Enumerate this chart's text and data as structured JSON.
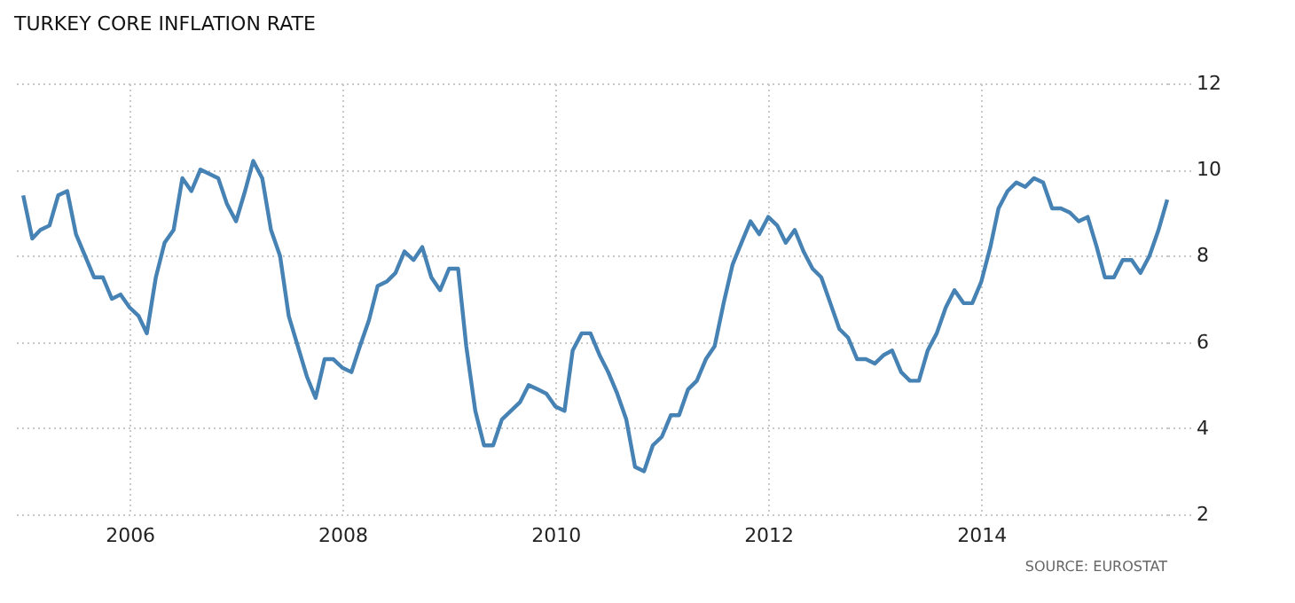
{
  "chart_data": {
    "type": "line",
    "title": "TURKEY CORE INFLATION RATE",
    "annotations": [
      "SOURCE: EUROSTAT"
    ],
    "x": [
      "2005-01",
      "2005-02",
      "2005-03",
      "2005-04",
      "2005-05",
      "2005-06",
      "2005-07",
      "2005-08",
      "2005-09",
      "2005-10",
      "2005-11",
      "2005-12",
      "2006-01",
      "2006-02",
      "2006-03",
      "2006-04",
      "2006-05",
      "2006-06",
      "2006-07",
      "2006-08",
      "2006-09",
      "2006-10",
      "2006-11",
      "2006-12",
      "2007-01",
      "2007-02",
      "2007-03",
      "2007-04",
      "2007-05",
      "2007-06",
      "2007-07",
      "2007-08",
      "2007-09",
      "2007-10",
      "2007-11",
      "2007-12",
      "2008-01",
      "2008-02",
      "2008-03",
      "2008-04",
      "2008-05",
      "2008-06",
      "2008-07",
      "2008-08",
      "2008-09",
      "2008-10",
      "2008-11",
      "2008-12",
      "2009-01",
      "2009-02",
      "2009-03",
      "2009-04",
      "2009-05",
      "2009-06",
      "2009-07",
      "2009-08",
      "2009-09",
      "2009-10",
      "2009-11",
      "2009-12",
      "2010-01",
      "2010-02",
      "2010-03",
      "2010-04",
      "2010-05",
      "2010-06",
      "2010-07",
      "2010-08",
      "2010-09",
      "2010-10",
      "2010-11",
      "2010-12",
      "2011-01",
      "2011-02",
      "2011-03",
      "2011-04",
      "2011-05",
      "2011-06",
      "2011-07",
      "2011-08",
      "2011-09",
      "2011-10",
      "2011-11",
      "2011-12",
      "2012-01",
      "2012-02",
      "2012-03",
      "2012-04",
      "2012-05",
      "2012-06",
      "2012-07",
      "2012-08",
      "2012-09",
      "2012-10",
      "2012-11",
      "2012-12",
      "2013-01",
      "2013-02",
      "2013-03",
      "2013-04",
      "2013-05",
      "2013-06",
      "2013-07",
      "2013-08",
      "2013-09",
      "2013-10",
      "2013-11",
      "2013-12",
      "2014-01",
      "2014-02",
      "2014-03",
      "2014-04",
      "2014-05",
      "2014-06",
      "2014-07",
      "2014-08",
      "2014-09",
      "2014-10",
      "2014-11",
      "2014-12",
      "2015-01",
      "2015-02",
      "2015-03",
      "2015-04",
      "2015-05",
      "2015-06",
      "2015-07",
      "2015-08",
      "2015-09",
      "2015-10"
    ],
    "series": [
      {
        "color": "#4682b4",
        "values": [
          9.4,
          8.4,
          8.6,
          8.7,
          9.4,
          9.5,
          8.5,
          8.0,
          7.5,
          7.5,
          7.0,
          7.1,
          6.8,
          6.6,
          6.2,
          7.5,
          8.3,
          8.6,
          9.8,
          9.5,
          10.0,
          9.9,
          9.8,
          9.2,
          8.8,
          9.5,
          10.2,
          9.8,
          8.6,
          8.0,
          6.6,
          5.9,
          5.2,
          4.7,
          5.6,
          5.6,
          5.4,
          5.3,
          5.9,
          6.5,
          7.3,
          7.4,
          7.6,
          8.1,
          7.9,
          8.2,
          7.5,
          7.2,
          7.7,
          7.7,
          5.9,
          4.4,
          3.6,
          3.6,
          4.2,
          4.4,
          4.6,
          5.0,
          4.9,
          4.8,
          4.5,
          4.4,
          5.8,
          6.2,
          6.2,
          5.7,
          5.3,
          4.8,
          4.2,
          3.1,
          3.0,
          3.6,
          3.8,
          4.3,
          4.3,
          4.9,
          5.1,
          5.6,
          5.9,
          6.9,
          7.8,
          8.3,
          8.8,
          8.5,
          8.9,
          8.7,
          8.3,
          8.6,
          8.1,
          7.7,
          7.5,
          6.9,
          6.3,
          6.1,
          5.6,
          5.6,
          5.5,
          5.7,
          5.8,
          5.3,
          5.1,
          5.1,
          5.8,
          6.2,
          6.8,
          7.2,
          6.9,
          6.9,
          7.4,
          8.2,
          9.1,
          9.5,
          9.7,
          9.6,
          9.8,
          9.7,
          9.1,
          9.1,
          9.0,
          8.8,
          8.9,
          8.2,
          7.5,
          7.5,
          7.9,
          7.9,
          7.6,
          8.0,
          8.6,
          9.3
        ]
      }
    ],
    "xlim": [
      "2004-12",
      "2015-10"
    ],
    "xticks": [
      "2006",
      "2008",
      "2010",
      "2012",
      "2014"
    ],
    "ylim": [
      2,
      12
    ],
    "yticks": [
      2,
      4,
      6,
      8,
      10,
      12
    ],
    "grid": true,
    "legend": false,
    "marker": "none",
    "line_style": "solid"
  }
}
